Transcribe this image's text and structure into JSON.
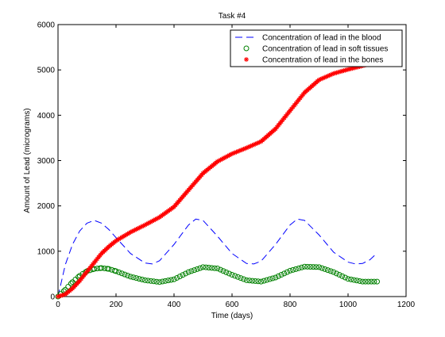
{
  "chart_data": {
    "type": "line",
    "title": "Task #4",
    "xlabel": "Time (days)",
    "ylabel": "Amount of Lead (micrograms)",
    "xlim": [
      0,
      1200
    ],
    "ylim": [
      0,
      6000
    ],
    "xticks": [
      0,
      200,
      400,
      600,
      800,
      1000,
      1200
    ],
    "yticks": [
      0,
      1000,
      2000,
      3000,
      4000,
      5000,
      6000
    ],
    "grid": false,
    "legend_position": "top-right",
    "series": [
      {
        "name": "Concentration of lead in the blood",
        "style": "dashed-line",
        "color": "#0000ff",
        "x": [
          0,
          25,
          50,
          75,
          100,
          125,
          150,
          175,
          200,
          250,
          300,
          325,
          350,
          400,
          450,
          475,
          500,
          550,
          600,
          650,
          675,
          700,
          750,
          800,
          825,
          850,
          900,
          950,
          1000,
          1025,
          1050,
          1075,
          1100
        ],
        "y": [
          0,
          700,
          1150,
          1450,
          1620,
          1680,
          1620,
          1480,
          1300,
          950,
          740,
          720,
          790,
          1150,
          1580,
          1710,
          1680,
          1330,
          950,
          730,
          720,
          780,
          1150,
          1580,
          1710,
          1680,
          1360,
          980,
          760,
          720,
          730,
          810,
          960
        ]
      },
      {
        "name": "Concentration of lead in soft tissues",
        "style": "circle-markers",
        "color": "#008000",
        "x": [
          0,
          25,
          50,
          75,
          100,
          125,
          150,
          175,
          200,
          250,
          300,
          350,
          400,
          450,
          500,
          550,
          600,
          650,
          700,
          750,
          800,
          850,
          900,
          950,
          1000,
          1050,
          1100
        ],
        "y": [
          0,
          150,
          320,
          460,
          560,
          610,
          630,
          610,
          560,
          440,
          360,
          320,
          380,
          540,
          650,
          620,
          480,
          360,
          330,
          420,
          570,
          660,
          650,
          540,
          390,
          330,
          330
        ]
      },
      {
        "name": "Concentration of lead in the bones",
        "style": "star-markers",
        "color": "#ff0000",
        "x": [
          0,
          25,
          50,
          75,
          100,
          125,
          150,
          175,
          200,
          250,
          300,
          350,
          400,
          450,
          500,
          550,
          600,
          650,
          700,
          750,
          800,
          850,
          900,
          950,
          1000,
          1050,
          1100
        ],
        "y": [
          0,
          50,
          180,
          350,
          550,
          750,
          950,
          1100,
          1230,
          1420,
          1580,
          1750,
          1980,
          2350,
          2720,
          2980,
          3150,
          3280,
          3420,
          3700,
          4100,
          4500,
          4780,
          4920,
          5010,
          5090,
          5180
        ]
      }
    ]
  }
}
